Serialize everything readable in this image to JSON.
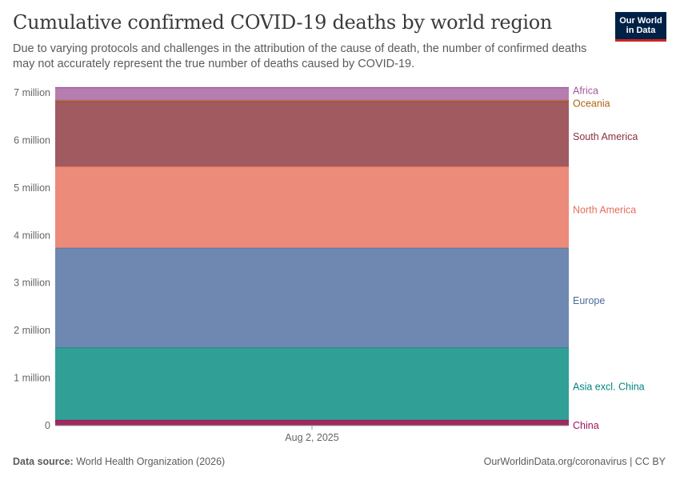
{
  "header": {
    "title": "Cumulative confirmed COVID-19 deaths by world region",
    "subtitle": "Due to varying protocols and challenges in the attribution of the cause of death, the number of confirmed deaths may not accurately represent the true number of deaths caused by COVID-19."
  },
  "logo": {
    "line1": "Our World",
    "line2": "in Data"
  },
  "footer": {
    "source_label": "Data source:",
    "source_value": "World Health Organization (2026)",
    "link": "OurWorldinData.org/coronavirus | CC BY"
  },
  "chart_data": {
    "type": "area",
    "stacked": true,
    "x": [
      "Aug 2, 2025"
    ],
    "ylim": [
      0,
      7000000
    ],
    "yticks": [
      0,
      1000000,
      2000000,
      3000000,
      4000000,
      5000000,
      6000000,
      7000000
    ],
    "ytick_labels": [
      "0",
      "1 million",
      "2 million",
      "3 million",
      "4 million",
      "5 million",
      "6 million",
      "7 million"
    ],
    "grid": true,
    "legend": "right, inline labels",
    "series": [
      {
        "name": "China",
        "values": [
          120000
        ],
        "color": "#a2105a",
        "fill": "#9c2a5e"
      },
      {
        "name": "Asia excl. China",
        "values": [
          1520000
        ],
        "color": "#00847e",
        "fill": "#30a096"
      },
      {
        "name": "Europe",
        "values": [
          2100000
        ],
        "color": "#4c6a9c",
        "fill": "#6f88b1"
      },
      {
        "name": "North America",
        "values": [
          1710000
        ],
        "color": "#e56e5a",
        "fill": "#ec8b79"
      },
      {
        "name": "South America",
        "values": [
          1370000
        ],
        "color": "#883039",
        "fill": "#a05a60"
      },
      {
        "name": "Oceania",
        "values": [
          30000
        ],
        "color": "#b16214",
        "fill": "#b77a58"
      },
      {
        "name": "Africa",
        "values": [
          260000
        ],
        "color": "#a2559c",
        "fill": "#b67db1"
      }
    ]
  }
}
